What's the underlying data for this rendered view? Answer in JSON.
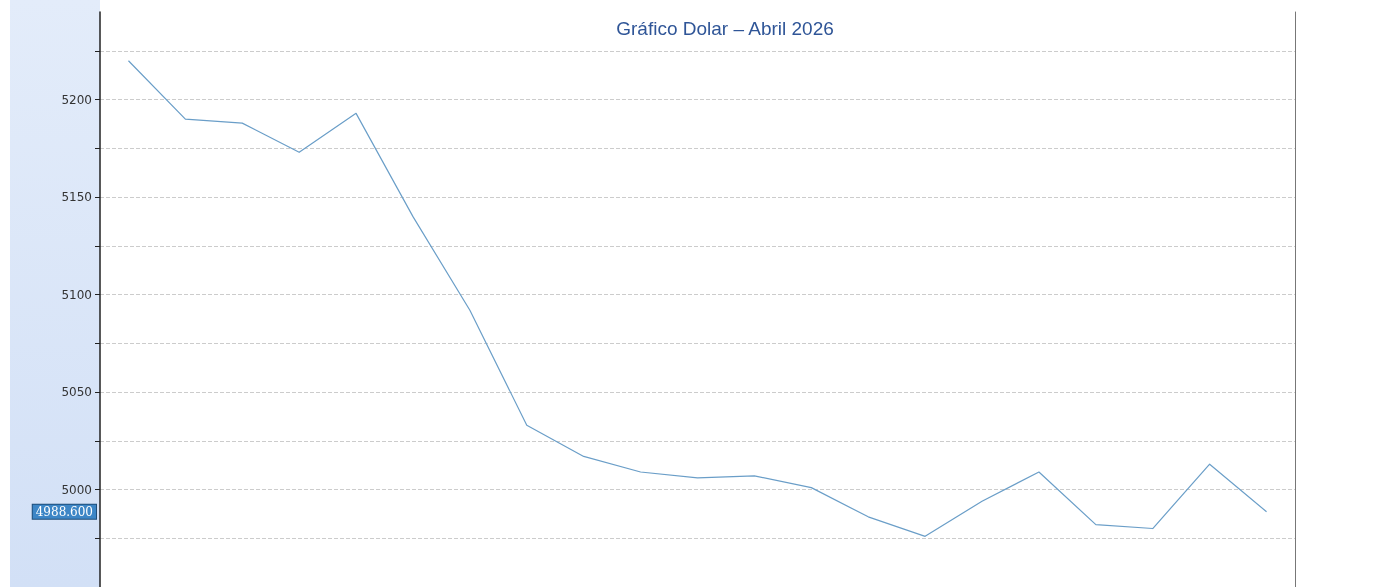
{
  "chart_data": {
    "type": "line",
    "title": "Gráfico Dolar – Abril 2026",
    "categories": [
      null,
      null,
      null,
      null,
      null,
      null,
      null,
      null,
      null,
      null,
      null,
      null,
      null,
      null,
      null,
      null,
      null,
      null,
      null,
      null,
      null
    ],
    "values": [
      5220,
      5190,
      5188,
      5173,
      5193,
      5140,
      5092,
      5033,
      5017,
      5009,
      5006,
      5007,
      5001,
      4986,
      4976,
      4994,
      5009,
      4982,
      4980,
      5013,
      4988.6
    ],
    "color": "#6a9ec8",
    "ylim": [
      4950,
      5245
    ],
    "yticks": [
      {
        "value": 4975,
        "label": null
      },
      5000,
      {
        "value": 5025,
        "label": null
      },
      5050,
      {
        "value": 5075,
        "label": null
      },
      5100,
      {
        "value": 5125,
        "label": null
      },
      5150,
      {
        "value": 5175,
        "label": null
      },
      5200,
      {
        "value": 5225,
        "label": null
      }
    ],
    "grid": "y",
    "annotations": [
      "4988.600"
    ]
  }
}
